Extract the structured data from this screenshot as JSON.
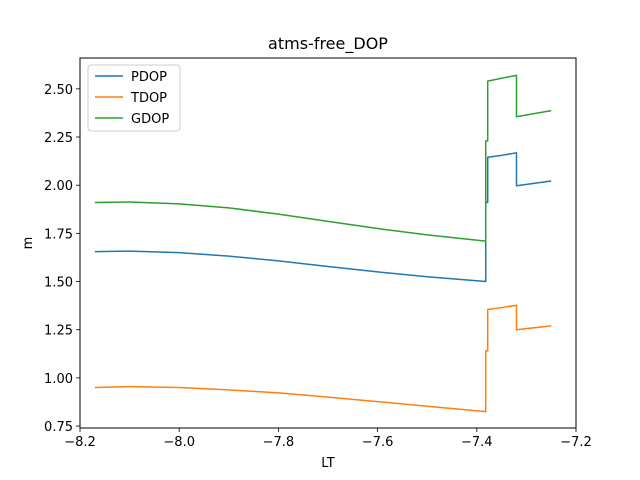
{
  "chart_data": {
    "type": "line",
    "title": "atms-free_DOP",
    "xlabel": "LT",
    "ylabel": "m",
    "xlim": [
      -8.2,
      -7.2
    ],
    "ylim": [
      0.74,
      2.66
    ],
    "xticks": [
      {
        "value": -8.2,
        "label": "−8.2"
      },
      {
        "value": -8.0,
        "label": "−8.0"
      },
      {
        "value": -7.8,
        "label": "−7.8"
      },
      {
        "value": -7.6,
        "label": "−7.6"
      },
      {
        "value": -7.4,
        "label": "−7.4"
      },
      {
        "value": -7.2,
        "label": "−7.2"
      }
    ],
    "yticks": [
      {
        "value": 0.75,
        "label": "0.75"
      },
      {
        "value": 1.0,
        "label": "1.00"
      },
      {
        "value": 1.25,
        "label": "1.25"
      },
      {
        "value": 1.5,
        "label": "1.50"
      },
      {
        "value": 1.75,
        "label": "1.75"
      },
      {
        "value": 2.0,
        "label": "2.00"
      },
      {
        "value": 2.25,
        "label": "2.25"
      },
      {
        "value": 2.5,
        "label": "2.50"
      }
    ],
    "grid": false,
    "legend_position": "top-left",
    "series": [
      {
        "name": "PDOP",
        "color": "#1f77b4",
        "points": [
          [
            -8.17,
            1.655
          ],
          [
            -8.1,
            1.658
          ],
          [
            -8.0,
            1.65
          ],
          [
            -7.9,
            1.632
          ],
          [
            -7.8,
            1.607
          ],
          [
            -7.7,
            1.578
          ],
          [
            -7.6,
            1.55
          ],
          [
            -7.5,
            1.525
          ],
          [
            -7.382,
            1.5
          ],
          [
            -7.382,
            1.91
          ],
          [
            -7.378,
            1.91
          ],
          [
            -7.378,
            2.145
          ],
          [
            -7.35,
            2.155
          ],
          [
            -7.32,
            2.168
          ],
          [
            -7.32,
            1.997
          ],
          [
            -7.25,
            2.022
          ]
        ]
      },
      {
        "name": "TDOP",
        "color": "#ff7f0e",
        "points": [
          [
            -8.17,
            0.95
          ],
          [
            -8.1,
            0.955
          ],
          [
            -8.0,
            0.95
          ],
          [
            -7.9,
            0.938
          ],
          [
            -7.8,
            0.922
          ],
          [
            -7.7,
            0.9
          ],
          [
            -7.6,
            0.877
          ],
          [
            -7.5,
            0.853
          ],
          [
            -7.382,
            0.825
          ],
          [
            -7.382,
            1.14
          ],
          [
            -7.378,
            1.14
          ],
          [
            -7.378,
            1.355
          ],
          [
            -7.35,
            1.365
          ],
          [
            -7.32,
            1.377
          ],
          [
            -7.32,
            1.25
          ],
          [
            -7.25,
            1.27
          ]
        ]
      },
      {
        "name": "GDOP",
        "color": "#2ca02c",
        "points": [
          [
            -8.17,
            1.91
          ],
          [
            -8.1,
            1.913
          ],
          [
            -8.0,
            1.903
          ],
          [
            -7.9,
            1.882
          ],
          [
            -7.8,
            1.85
          ],
          [
            -7.7,
            1.812
          ],
          [
            -7.6,
            1.775
          ],
          [
            -7.5,
            1.742
          ],
          [
            -7.382,
            1.71
          ],
          [
            -7.382,
            2.23
          ],
          [
            -7.378,
            2.23
          ],
          [
            -7.378,
            2.54
          ],
          [
            -7.35,
            2.555
          ],
          [
            -7.32,
            2.57
          ],
          [
            -7.32,
            2.355
          ],
          [
            -7.25,
            2.387
          ]
        ]
      }
    ]
  }
}
